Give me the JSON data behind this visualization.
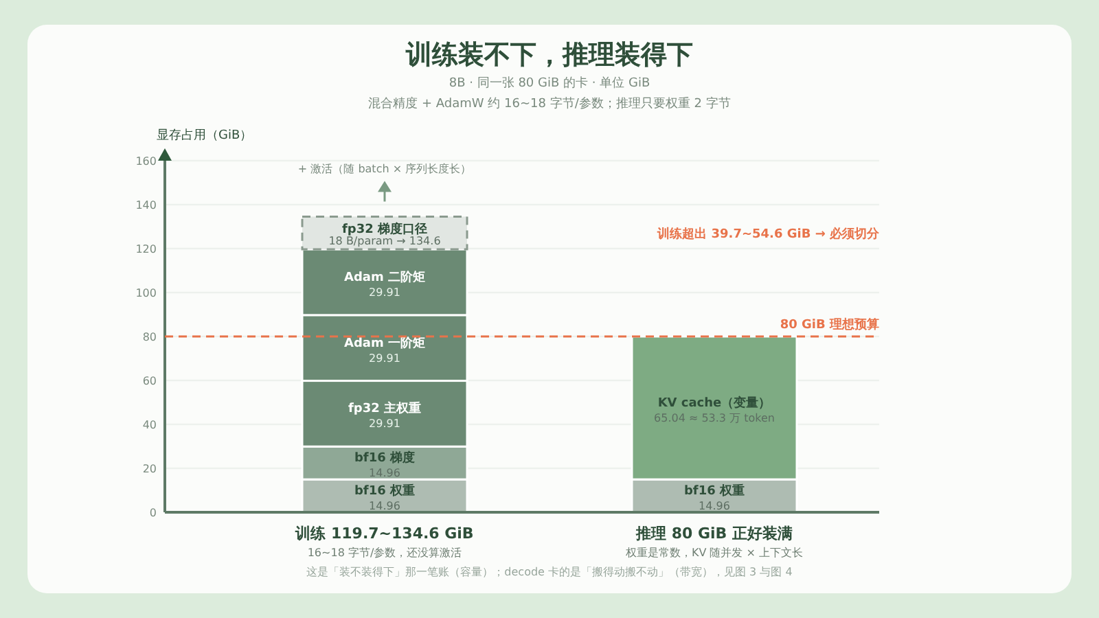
{
  "chart_data": {
    "type": "bar",
    "stacked": true,
    "title": "训练装不下，推理装得下",
    "subtitle": "8B · 同一张 80 GiB 的卡 · 单位 GiB",
    "ylabel": "显存占用（GiB）",
    "categories": [
      "训练 119.7~134.6 GiB",
      "推理 80 GiB 正好装满"
    ],
    "series": [
      {
        "name": "bf16 权重",
        "color": "#aebcb2",
        "values": [
          14.96,
          14.96
        ],
        "value_labels": [
          "14.96",
          "14.96"
        ]
      },
      {
        "name": "bf16 梯度",
        "color": "#8fa896",
        "values": [
          14.96,
          null
        ],
        "value_labels": [
          "14.96",
          null
        ]
      },
      {
        "name": "fp32 主权重",
        "color": "#6b8a74",
        "values": [
          29.91,
          null
        ],
        "value_labels": [
          "29.91",
          null
        ]
      },
      {
        "name": "Adam 一阶矩",
        "color": "#6b8a74",
        "values": [
          29.91,
          null
        ],
        "value_labels": [
          "29.91",
          null
        ]
      },
      {
        "name": "Adam 二阶矩",
        "color": "#6b8a74",
        "values": [
          29.91,
          null
        ],
        "value_labels": [
          "29.91",
          null
        ]
      },
      {
        "name": "fp32 梯度口径",
        "color": "#e1e6e2",
        "values": [
          14.9,
          null
        ],
        "line_style": "dashed"
      },
      {
        "name": "KV cache（变量）",
        "color": "#7eab83",
        "values": [
          null,
          65.04
        ],
        "value_labels": [
          null,
          "65.04  ≈ 53.3 万 token"
        ]
      }
    ],
    "ylim": [
      0,
      160
    ],
    "yticks": [
      0,
      20,
      40,
      60,
      80,
      100,
      120,
      140,
      160
    ],
    "grid": "y",
    "ref_lines": [
      {
        "axis": "y",
        "value": 80,
        "label": "80 GiB 理想预算",
        "color": "#e8734a",
        "line_style": "dashed"
      }
    ],
    "annotations": [
      "混合精度 + AdamW 约 16~18 字节/参数；推理只要权重 2 字节",
      "训练超出 39.7~54.6 GiB → 必须切分",
      "+ 激活（随 batch × 序列长度长）",
      "16~18 字节/参数，还没算激活",
      "权重是常数，KV 随并发 × 上下文长",
      "这是「装不装得下」那一笔账（容量）；decode 卡的是「搬得动搬不动」（带宽），见图 3 与图 4",
      "18 B/param → 134.6"
    ]
  }
}
